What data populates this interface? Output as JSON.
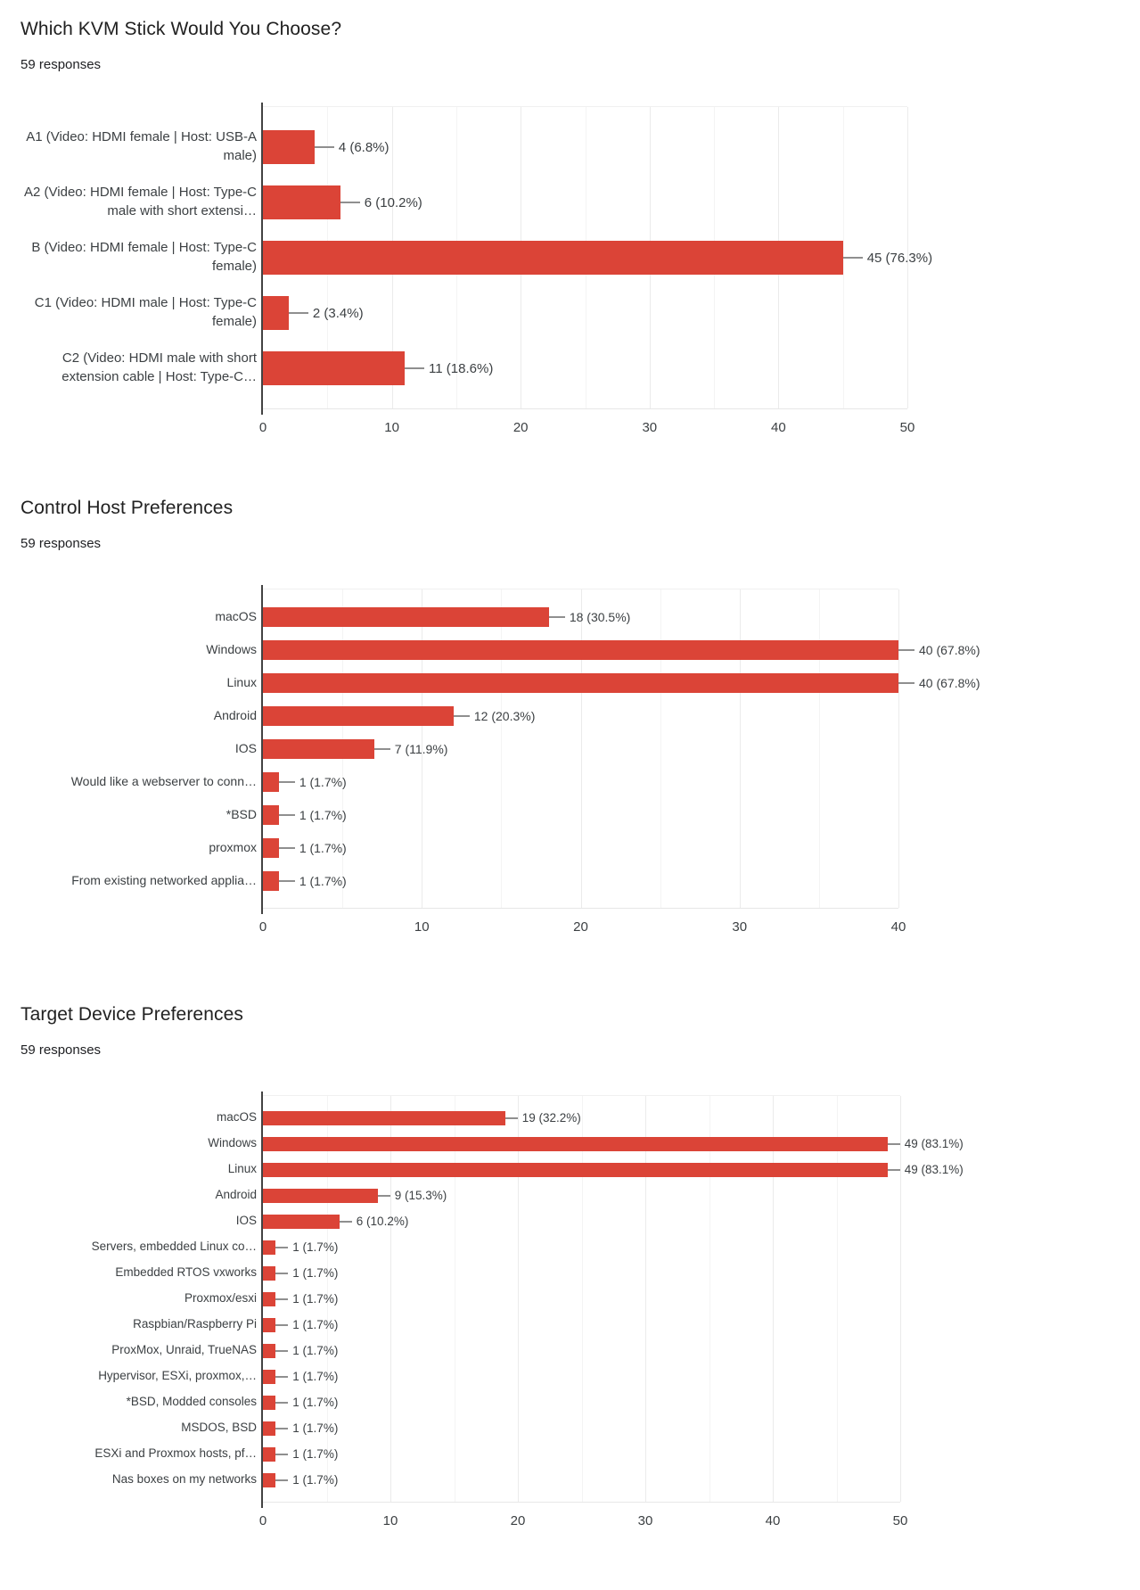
{
  "chart_data": [
    {
      "type": "bar",
      "orientation": "horizontal",
      "title": "Which KVM Stick Would You Choose?",
      "responses": "59 responses",
      "bar_color": "#db4437",
      "categories": [
        "A1 (Video: HDMI female | Host: USB-A male)",
        "A2 (Video: HDMI female | Host: Type-C male with short extensi…",
        "B (Video: HDMI female | Host: Type-C female)",
        "C1 (Video: HDMI male | Host: Type-C female)",
        "C2 (Video: HDMI male with short extension cable | Host: Type-C…"
      ],
      "values": [
        4,
        6,
        45,
        2,
        11
      ],
      "value_labels": [
        "4 (6.8%)",
        "6 (10.2%)",
        "45 (76.3%)",
        "2 (3.4%)",
        "11 (18.6%)"
      ],
      "xlim": [
        0,
        50
      ],
      "ticks": [
        0,
        10,
        20,
        30,
        40,
        50
      ],
      "tick_step": 10,
      "grid_step": 5,
      "grid": true,
      "legend": "none"
    },
    {
      "type": "bar",
      "orientation": "horizontal",
      "title": "Control Host Preferences",
      "responses": "59 responses",
      "bar_color": "#db4437",
      "categories": [
        "macOS",
        "Windows",
        "Linux",
        "Android",
        "IOS",
        "Would like a webserver to conn…",
        "*BSD",
        "proxmox",
        "From existing networked applia…"
      ],
      "values": [
        18,
        40,
        40,
        12,
        7,
        1,
        1,
        1,
        1
      ],
      "value_labels": [
        "18 (30.5%)",
        "40 (67.8%)",
        "40 (67.8%)",
        "12 (20.3%)",
        "7 (11.9%)",
        "1 (1.7%)",
        "1 (1.7%)",
        "1 (1.7%)",
        "1 (1.7%)"
      ],
      "xlim": [
        0,
        40
      ],
      "ticks": [
        0,
        10,
        20,
        30,
        40
      ],
      "tick_step": 10,
      "grid_step": 5,
      "grid": true,
      "legend": "none"
    },
    {
      "type": "bar",
      "orientation": "horizontal",
      "title": "Target Device Preferences",
      "responses": "59 responses",
      "bar_color": "#db4437",
      "categories": [
        "macOS",
        "Windows",
        "Linux",
        "Android",
        "IOS",
        "Servers, embedded Linux co…",
        "Embedded RTOS vxworks",
        "Proxmox/esxi",
        "Raspbian/Raspberry Pi",
        "ProxMox, Unraid, TrueNAS",
        "Hypervisor, ESXi, proxmox,…",
        "*BSD, Modded consoles",
        "MSDOS, BSD",
        "ESXi and Proxmox hosts, pf…",
        "Nas boxes on my networks"
      ],
      "values": [
        19,
        49,
        49,
        9,
        6,
        1,
        1,
        1,
        1,
        1,
        1,
        1,
        1,
        1,
        1
      ],
      "value_labels": [
        "19 (32.2%)",
        "49 (83.1%)",
        "49 (83.1%)",
        "9 (15.3%)",
        "6 (10.2%)",
        "1 (1.7%)",
        "1 (1.7%)",
        "1 (1.7%)",
        "1 (1.7%)",
        "1 (1.7%)",
        "1 (1.7%)",
        "1 (1.7%)",
        "1 (1.7%)",
        "1 (1.7%)",
        "1 (1.7%)"
      ],
      "xlim": [
        0,
        50
      ],
      "ticks": [
        0,
        10,
        20,
        30,
        40,
        50
      ],
      "tick_step": 10,
      "grid_step": 5,
      "grid": true,
      "legend": "none"
    }
  ]
}
